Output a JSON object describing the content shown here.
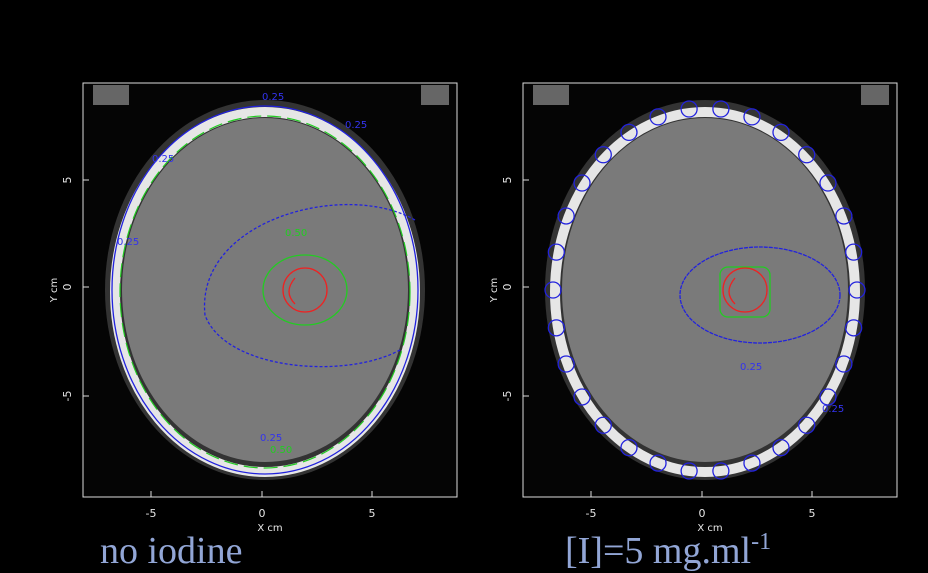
{
  "panels": [
    {
      "x_ticks": [
        -5,
        0,
        5
      ],
      "y_ticks": [
        5,
        0,
        -5
      ],
      "x_label": "X cm",
      "y_label": "Y cm",
      "contour_labels": [
        "0.25",
        "0.25",
        "0.25",
        "0.25",
        "0.50",
        "0.25",
        "0.50"
      ],
      "caption": "no iodine"
    },
    {
      "x_ticks": [
        -5,
        0,
        5
      ],
      "y_ticks": [
        5,
        0,
        -5
      ],
      "x_label": "X cm",
      "y_label": "Y cm",
      "contour_labels": [
        "0.25",
        "0.25"
      ],
      "caption": "[I]=5 mg.ml",
      "caption_superscript": "-1"
    }
  ]
}
